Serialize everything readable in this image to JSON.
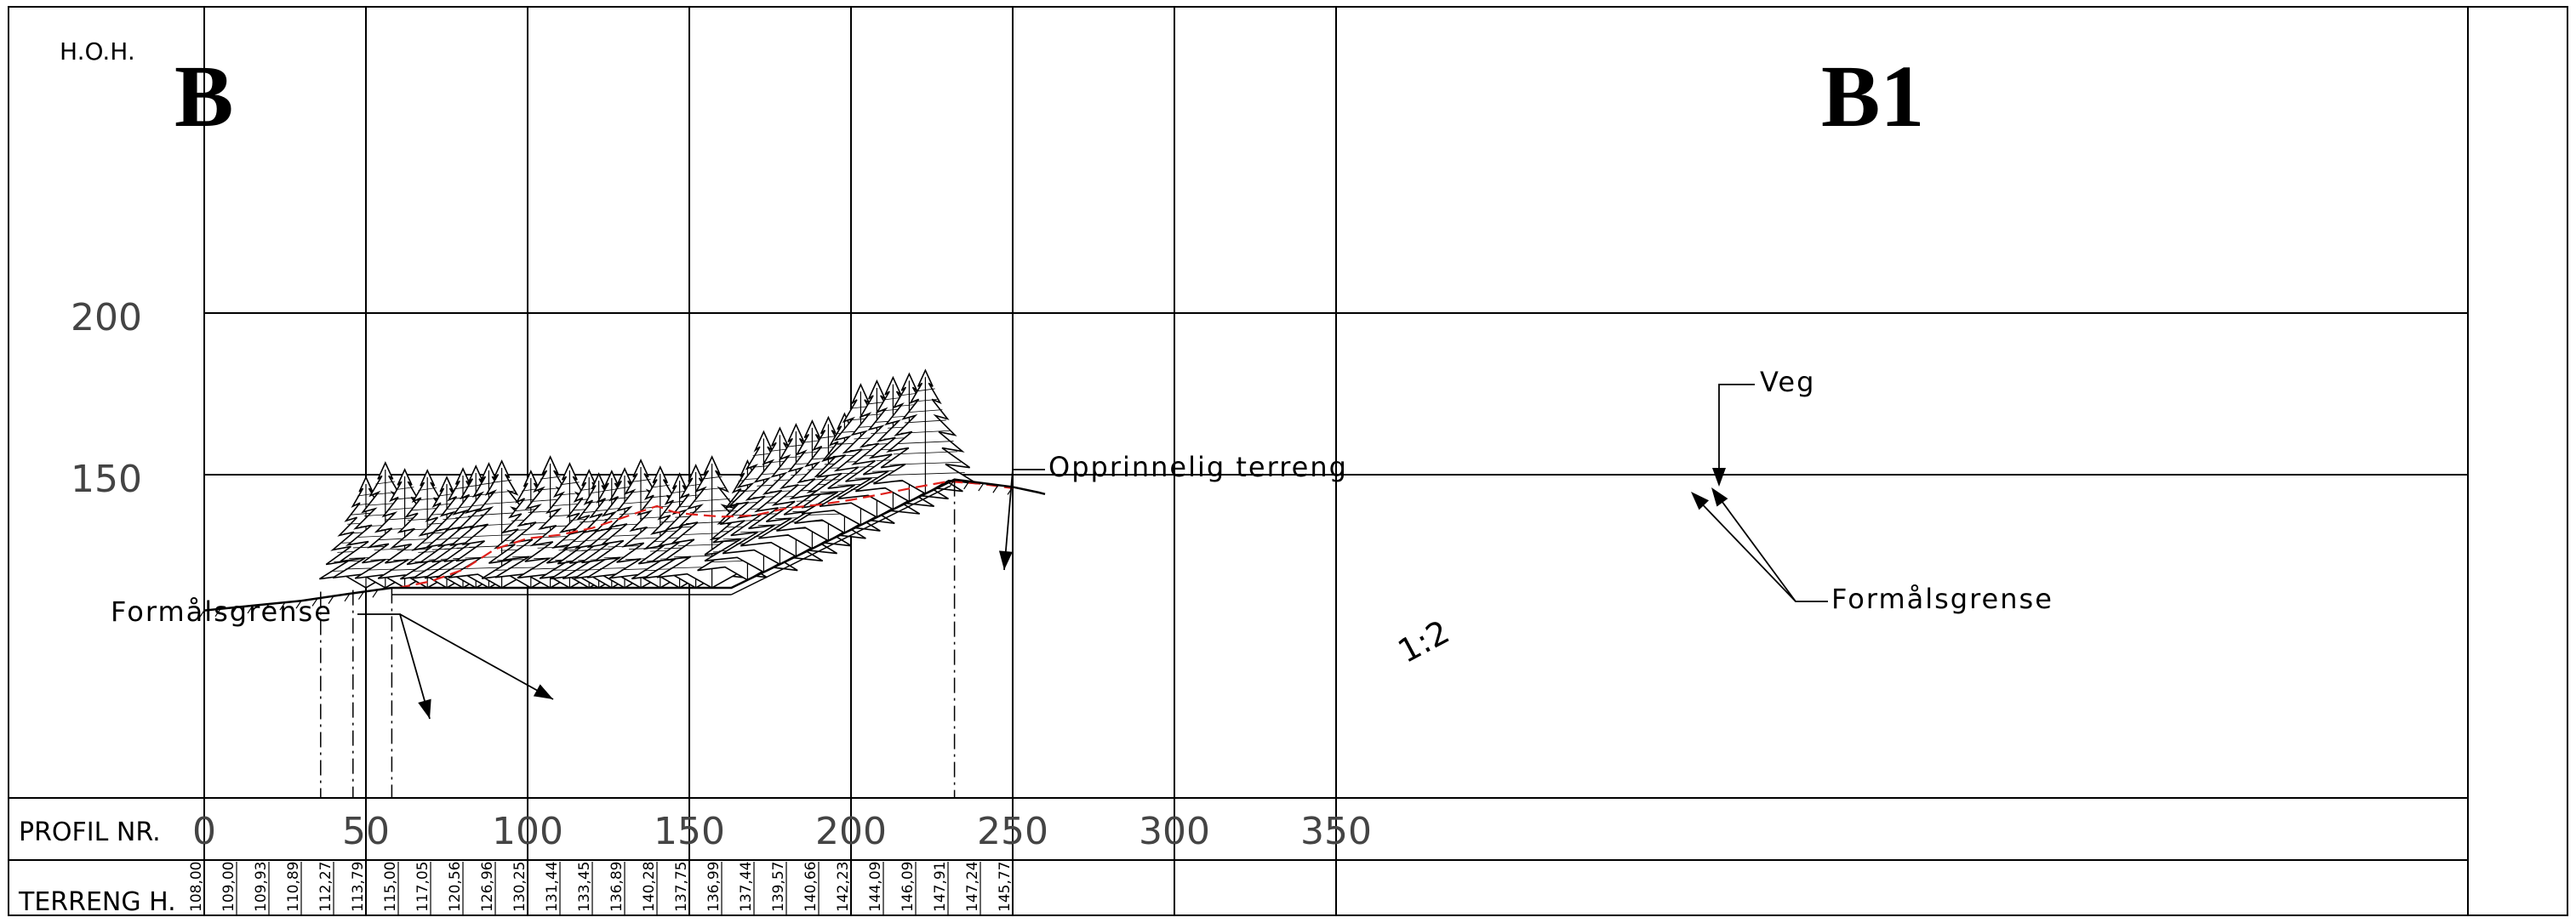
{
  "labels": {
    "hoh": "H.O.H.",
    "start_marker": "B",
    "end_marker": "B1",
    "profil_nr": "PROFIL NR.",
    "terreng_h": "TERRENG H.",
    "formalsgrense_left": "Formålsgrense",
    "formalsgrense_right": "Formålsgrense",
    "opprinnelig_terreng": "Opprinnelig terreng",
    "veg": "Veg",
    "slope": "1:2"
  },
  "axis": {
    "y_ticks": [
      {
        "value": 200,
        "label": "200"
      },
      {
        "value": 150,
        "label": "150"
      }
    ],
    "x_ticks": [
      {
        "value": 0,
        "label": "0"
      },
      {
        "value": 50,
        "label": "50"
      },
      {
        "value": 100,
        "label": "100"
      },
      {
        "value": 150,
        "label": "150"
      },
      {
        "value": 200,
        "label": "200"
      },
      {
        "value": 250,
        "label": "250"
      },
      {
        "value": 300,
        "label": "300"
      },
      {
        "value": 350,
        "label": "350"
      }
    ],
    "x_range": [
      0,
      350
    ],
    "y_range": [
      110,
      200
    ]
  },
  "terreng_heights": [
    "108,00",
    "109,00",
    "109,93",
    "110,89",
    "112,27",
    "113,79",
    "115,00",
    "117,05",
    "120,56",
    "126,96",
    "130,25",
    "131,44",
    "133,45",
    "136,89",
    "140,28",
    "137,75",
    "136,99",
    "137,44",
    "139,57",
    "140,66",
    "142,23",
    "144,09",
    "146,09",
    "147,91",
    "147,24",
    "145,77"
  ],
  "profiles": {
    "existing_terrain": [
      [
        0,
        108
      ],
      [
        10,
        109
      ],
      [
        20,
        110
      ],
      [
        30,
        111
      ],
      [
        40,
        112.3
      ],
      [
        50,
        113.8
      ],
      [
        60,
        115
      ],
      [
        70,
        117
      ],
      [
        80,
        120.6
      ],
      [
        90,
        127
      ],
      [
        100,
        130.3
      ],
      [
        110,
        131.4
      ],
      [
        120,
        133.5
      ],
      [
        130,
        136.9
      ],
      [
        140,
        140.3
      ],
      [
        145,
        138.5
      ],
      [
        150,
        137.8
      ],
      [
        160,
        137
      ],
      [
        170,
        137.4
      ],
      [
        180,
        139.6
      ],
      [
        190,
        140.7
      ],
      [
        200,
        142.2
      ],
      [
        210,
        144.1
      ],
      [
        220,
        146.1
      ],
      [
        230,
        147.9
      ],
      [
        240,
        147.2
      ],
      [
        250,
        145.8
      ]
    ],
    "design": [
      [
        0,
        108
      ],
      [
        15,
        109.5
      ],
      [
        30,
        111
      ],
      [
        45,
        113.2
      ],
      [
        58,
        115
      ],
      [
        163,
        115
      ],
      [
        232,
        148.5
      ],
      [
        250,
        146.2
      ],
      [
        258,
        144.5
      ],
      [
        260,
        144
      ]
    ],
    "formalsgrense_marks": [
      36,
      46,
      58,
      232
    ]
  },
  "colors": {
    "line": "#000000",
    "grid": "#000000",
    "existing_terrain": "#e0201b",
    "background": "#ffffff"
  }
}
